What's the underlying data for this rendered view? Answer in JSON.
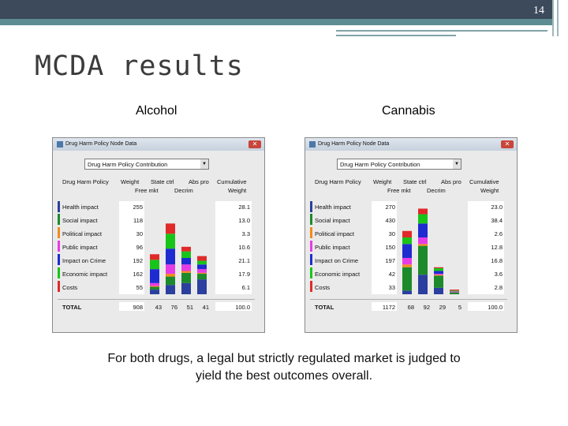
{
  "slide": {
    "page_number": "14",
    "title": "MCDA results",
    "caption": "For both drugs, a legal but strictly regulated market is judged to yield the best outcomes overall.",
    "colors": {
      "header_dark": "#3c4a5c",
      "header_teal": "#5d8d93"
    }
  },
  "panels": [
    {
      "label": "Alcohol",
      "window": {
        "title": "Drug Harm Policy Node Data",
        "close_icon": "close-icon",
        "dropdown_value": "Drug Harm Policy Contribution",
        "headers": [
          "Drug Harm Policy",
          "Weight",
          "State ctrl",
          "Abs pro",
          "Cumulative",
          "Free mkt",
          "Decrim",
          "Weight"
        ],
        "criteria": [
          "Health impact",
          "Social impact",
          "Political impact",
          "Public impact",
          "Impact on Crime",
          "Economic impact",
          "Costs"
        ],
        "criterion_colors": [
          "#2b3f9e",
          "#1c8a2a",
          "#f28a1e",
          "#e63ce6",
          "#1e2bd0",
          "#19c419",
          "#e02a2a"
        ],
        "weights": [
          "255",
          "118",
          "30",
          "96",
          "192",
          "162",
          "55"
        ],
        "cumulative": [
          "28.1",
          "13.0",
          "3.3",
          "10.6",
          "21.1",
          "17.9",
          "6.1"
        ],
        "total_label": "TOTAL",
        "totals": [
          "908",
          "43",
          "76",
          "51",
          "41",
          "100.0"
        ]
      }
    },
    {
      "label": "Cannabis",
      "window": {
        "title": "Drug Harm Policy Node Data",
        "close_icon": "close-icon",
        "dropdown_value": "Drug Harm Policy Contribution",
        "headers": [
          "Drug Harm Policy",
          "Weight",
          "State ctrl",
          "Abs pro",
          "Cumulative",
          "Free mkt",
          "Decrim",
          "Weight"
        ],
        "criteria": [
          "Health impact",
          "Social impact",
          "Political impact",
          "Public impact",
          "Impact on Crime",
          "Economic impact",
          "Costs"
        ],
        "criterion_colors": [
          "#2b3f9e",
          "#1c8a2a",
          "#f28a1e",
          "#e63ce6",
          "#1e2bd0",
          "#19c419",
          "#e02a2a"
        ],
        "weights": [
          "270",
          "430",
          "30",
          "150",
          "197",
          "42",
          "33"
        ],
        "cumulative": [
          "23.0",
          "38.4",
          "2.6",
          "12.8",
          "16.8",
          "3.6",
          "2.8"
        ],
        "total_label": "TOTAL",
        "totals": [
          "1172",
          "68",
          "92",
          "29",
          "5",
          "100.0"
        ]
      }
    }
  ],
  "chart_data": [
    {
      "type": "bar",
      "stacked": true,
      "categories": [
        "Free mkt",
        "State ctrl",
        "Decrim",
        "Abs pro"
      ],
      "ylim": [
        0,
        100
      ],
      "series": [
        {
          "name": "Health impact",
          "values": [
            5,
            10,
            12,
            16
          ]
        },
        {
          "name": "Social impact",
          "values": [
            3,
            9,
            11,
            6
          ]
        },
        {
          "name": "Political impact",
          "values": [
            1,
            3,
            2,
            1
          ]
        },
        {
          "name": "Public impact",
          "values": [
            3,
            10,
            7,
            4
          ]
        },
        {
          "name": "Impact on Crime",
          "values": [
            15,
            17,
            7,
            5
          ]
        },
        {
          "name": "Economic impact",
          "values": [
            10,
            16,
            7,
            4
          ]
        },
        {
          "name": "Costs",
          "values": [
            6,
            11,
            5,
            5
          ]
        }
      ],
      "totals": [
        43,
        76,
        51,
        41
      ]
    },
    {
      "type": "bar",
      "stacked": true,
      "categories": [
        "Free mkt",
        "State ctrl",
        "Decrim",
        "Abs pro"
      ],
      "ylim": [
        0,
        100
      ],
      "series": [
        {
          "name": "Health impact",
          "values": [
            4,
            21,
            7,
            0
          ]
        },
        {
          "name": "Social impact",
          "values": [
            25,
            31,
            13,
            2
          ]
        },
        {
          "name": "Political impact",
          "values": [
            3,
            2,
            1,
            0
          ]
        },
        {
          "name": "Public impact",
          "values": [
            7,
            7,
            1,
            1
          ]
        },
        {
          "name": "Impact on Crime",
          "values": [
            15,
            15,
            3,
            0
          ]
        },
        {
          "name": "Economic impact",
          "values": [
            7,
            10,
            3,
            1
          ]
        },
        {
          "name": "Costs",
          "values": [
            7,
            6,
            1,
            1
          ]
        }
      ],
      "totals": [
        68,
        92,
        29,
        5
      ]
    }
  ]
}
